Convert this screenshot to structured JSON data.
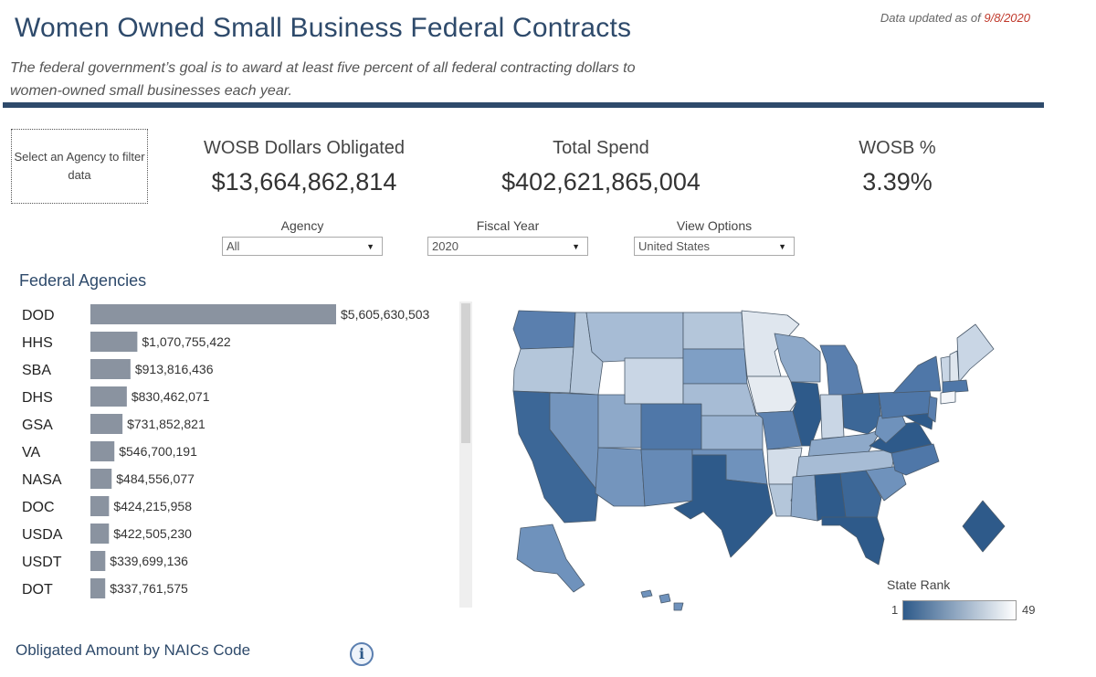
{
  "header": {
    "title": "Women Owned Small Business Federal Contracts",
    "updated_prefix": "Data updated as of",
    "updated_date": "9/8/2020",
    "subtitle": "The federal government’s goal is to award at least five percent of all federal contracting dollars to women-owned small businesses each year."
  },
  "agency_prompt": "Select an Agency to filter data",
  "kpis": {
    "wosb_label": "WOSB Dollars Obligated",
    "wosb_value": "$13,664,862,814",
    "total_label": "Total Spend",
    "total_value": "$402,621,865,004",
    "pct_label": "WOSB %",
    "pct_value": "3.39%"
  },
  "filters": {
    "agency_label": "Agency",
    "agency_value": "All",
    "year_label": "Fiscal Year",
    "year_value": "2020",
    "view_label": "View Options",
    "view_value": "United States"
  },
  "agencies_title": "Federal Agencies",
  "naics_title": "Obligated Amount by NAICs Code",
  "map_legend": {
    "title": "State Rank",
    "min": "1",
    "max": "49"
  },
  "colors": {
    "bar": "#8a93a0",
    "accent": "#2e4a6b",
    "map_dark": "#2e5a8a",
    "map_light": "#ffffff",
    "date": "#c0392b"
  },
  "icons": {
    "info": "info-icon",
    "dropdown": "chevron-down-icon"
  },
  "chart_data": {
    "type": "bar",
    "title": "Federal Agencies",
    "categories": [
      "DOD",
      "HHS",
      "SBA",
      "DHS",
      "GSA",
      "VA",
      "NASA",
      "DOC",
      "USDA",
      "USDT",
      "DOT"
    ],
    "values": [
      5605630503,
      1070755422,
      913816436,
      830462071,
      731852821,
      546700191,
      484556077,
      424215958,
      422505230,
      339699136,
      337761575
    ],
    "labels": [
      "$5,605,630,503",
      "$1,070,755,422",
      "$913,816,436",
      "$830,462,071",
      "$731,852,821",
      "$546,700,191",
      "$484,556,077",
      "$424,215,958",
      "$422,505,230",
      "$339,699,136",
      "$337,761,575"
    ]
  }
}
